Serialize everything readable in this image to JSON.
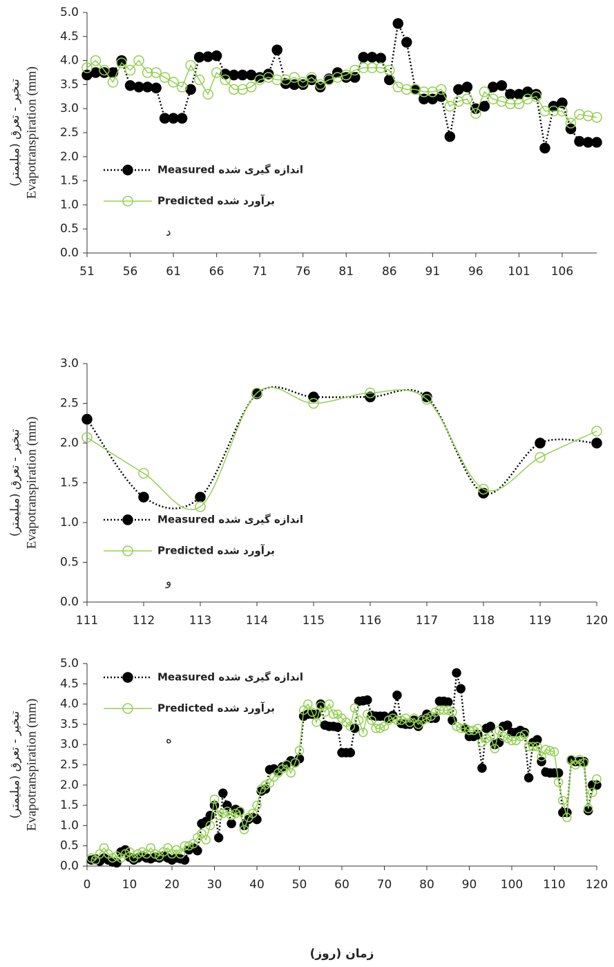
{
  "chart_data": [
    {
      "type": "line",
      "annotation": "د",
      "ylabel": "Evapotranspiration (mm)",
      "ylabel_fa": "تبخیر - تعرق (میلیمتر)",
      "x": [
        51,
        52,
        53,
        54,
        55,
        56,
        57,
        58,
        59,
        60,
        61,
        62,
        63,
        64,
        65,
        66,
        67,
        68,
        69,
        70,
        71,
        72,
        73,
        74,
        75,
        76,
        77,
        78,
        79,
        80,
        81,
        82,
        83,
        84,
        85,
        86,
        87,
        88,
        89,
        90,
        91,
        92,
        93,
        94,
        95,
        96,
        97,
        98,
        99,
        100,
        101,
        102,
        103,
        104,
        105,
        106,
        107,
        108,
        109,
        110
      ],
      "xlim": [
        51,
        110
      ],
      "xticks": [
        51,
        56,
        61,
        66,
        71,
        76,
        81,
        86,
        91,
        96,
        101,
        106
      ],
      "ylim": [
        0,
        5
      ],
      "yticks": [
        {
          "value": 0,
          "label": "0.0"
        },
        0.5,
        {
          "value": 1,
          "label": "1.0"
        },
        1.5,
        {
          "value": 2,
          "label": "2.0"
        },
        2.5,
        {
          "value": 3,
          "label": "3.0"
        },
        3.5,
        {
          "value": 4,
          "label": "4.0"
        },
        4.5,
        {
          "value": 5,
          "label": "5.0"
        }
      ],
      "legend": "center left",
      "smooth": false,
      "series": [
        {
          "name": "Measured اندازه گیری شده",
          "color": "#000000",
          "line": "dotted",
          "marker": "filled",
          "values": [
            3.7,
            3.75,
            3.75,
            3.75,
            4.0,
            3.48,
            3.45,
            3.45,
            3.43,
            2.8,
            2.8,
            2.8,
            3.4,
            4.07,
            4.08,
            4.1,
            3.72,
            3.7,
            3.7,
            3.7,
            3.65,
            3.72,
            4.22,
            3.52,
            3.5,
            3.5,
            3.6,
            3.45,
            3.62,
            3.75,
            3.65,
            3.65,
            4.07,
            4.07,
            4.05,
            3.6,
            4.77,
            4.38,
            3.4,
            3.2,
            3.2,
            3.25,
            2.42,
            3.4,
            3.45,
            3.0,
            3.05,
            3.45,
            3.48,
            3.3,
            3.3,
            3.35,
            3.3,
            2.18,
            3.05,
            3.12,
            2.58,
            2.32,
            2.3,
            2.3
          ]
        },
        {
          "name": "Predicted برآورد شده",
          "color": "#92d050",
          "line": "solid",
          "marker": "hollow",
          "values": [
            3.85,
            4.0,
            3.8,
            3.55,
            3.95,
            3.8,
            4.0,
            3.75,
            3.75,
            3.65,
            3.55,
            3.45,
            3.9,
            3.6,
            3.3,
            3.75,
            3.6,
            3.4,
            3.4,
            3.45,
            3.6,
            3.65,
            3.6,
            3.6,
            3.65,
            3.55,
            3.65,
            3.5,
            3.6,
            3.65,
            3.7,
            3.8,
            3.85,
            3.85,
            3.85,
            3.8,
            3.45,
            3.4,
            3.4,
            3.35,
            3.35,
            3.4,
            3.05,
            3.15,
            3.2,
            2.9,
            3.35,
            3.2,
            3.15,
            3.1,
            3.1,
            3.2,
            3.25,
            2.95,
            2.95,
            2.95,
            2.7,
            2.88,
            2.85,
            2.82
          ]
        }
      ]
    },
    {
      "type": "line",
      "annotation": "و",
      "ylabel": "Evapotranspiration (mm)",
      "ylabel_fa": "تبخیر - تعرق (میلیمتر)",
      "x": [
        111,
        112,
        113,
        114,
        115,
        116,
        117,
        118,
        119,
        120
      ],
      "xlim": [
        111,
        120
      ],
      "xticks": [
        111,
        112,
        113,
        114,
        115,
        116,
        117,
        118,
        119,
        120
      ],
      "ylim": [
        0,
        3
      ],
      "yticks": [
        {
          "value": 0,
          "label": "0.0"
        },
        0.5,
        {
          "value": 1,
          "label": "1.0"
        },
        1.5,
        {
          "value": 2,
          "label": "2.0"
        },
        2.5,
        {
          "value": 3,
          "label": "3.0"
        }
      ],
      "legend": "center left",
      "smooth": true,
      "series": [
        {
          "name": "Measured اندازه گیری شده",
          "color": "#000000",
          "line": "dotted",
          "marker": "filled",
          "values": [
            2.3,
            1.32,
            1.32,
            2.62,
            2.58,
            2.58,
            2.58,
            1.37,
            2.0,
            2.0
          ]
        },
        {
          "name": "Predicted برآورد شده",
          "color": "#92d050",
          "line": "solid",
          "marker": "hollow",
          "values": [
            2.07,
            1.62,
            1.2,
            2.63,
            2.5,
            2.63,
            2.55,
            1.42,
            1.82,
            2.15
          ]
        }
      ]
    },
    {
      "type": "line",
      "annotation": "ه",
      "ylabel": "Evapotranspiration (mm)",
      "ylabel_fa": "تبخیر - تعرق (میلیمتر)",
      "xlabel": "زمان (روز)",
      "x": [
        1,
        2,
        3,
        4,
        5,
        6,
        7,
        8,
        9,
        10,
        11,
        12,
        13,
        14,
        15,
        16,
        17,
        18,
        19,
        20,
        21,
        22,
        23,
        24,
        25,
        26,
        27,
        28,
        29,
        30,
        31,
        32,
        33,
        34,
        35,
        36,
        37,
        38,
        39,
        40,
        41,
        42,
        43,
        44,
        45,
        46,
        47,
        48,
        49,
        50,
        51,
        52,
        53,
        54,
        55,
        56,
        57,
        58,
        59,
        60,
        61,
        62,
        63,
        64,
        65,
        66,
        67,
        68,
        69,
        70,
        71,
        72,
        73,
        74,
        75,
        76,
        77,
        78,
        79,
        80,
        81,
        82,
        83,
        84,
        85,
        86,
        87,
        88,
        89,
        90,
        91,
        92,
        93,
        94,
        95,
        96,
        97,
        98,
        99,
        100,
        101,
        102,
        103,
        104,
        105,
        106,
        107,
        108,
        109,
        110,
        111,
        112,
        113,
        114,
        115,
        116,
        117,
        118,
        119,
        120
      ],
      "xlim": [
        0,
        120
      ],
      "xticks": [
        0,
        10,
        20,
        30,
        40,
        50,
        60,
        70,
        80,
        90,
        100,
        110,
        120
      ],
      "ylim": [
        0,
        5
      ],
      "yticks": [
        {
          "value": 0,
          "label": "0.0"
        },
        0.5,
        {
          "value": 1,
          "label": "1.0"
        },
        1.5,
        {
          "value": 2,
          "label": "2.0"
        },
        2.5,
        {
          "value": 3,
          "label": "3.0"
        },
        3.5,
        {
          "value": 4,
          "label": "4.0"
        },
        4.5,
        {
          "value": 5,
          "label": "5.0"
        }
      ],
      "legend": "upper left",
      "smooth": false,
      "series": [
        {
          "name": "Measured اندازه گیری شده",
          "color": "#000000",
          "line": "dotted",
          "marker": "filled",
          "values": [
            0.15,
            0.18,
            0.12,
            0.2,
            0.15,
            0.1,
            0.08,
            0.35,
            0.4,
            0.22,
            0.15,
            0.2,
            0.25,
            0.2,
            0.18,
            0.22,
            0.2,
            0.25,
            0.2,
            0.15,
            0.2,
            0.18,
            0.15,
            0.4,
            0.45,
            0.38,
            1.05,
            1.1,
            1.25,
            1.5,
            0.7,
            1.8,
            1.5,
            1.05,
            1.4,
            1.35,
            1.0,
            1.15,
            1.2,
            1.15,
            1.85,
            1.9,
            2.38,
            2.4,
            2.35,
            2.45,
            2.5,
            2.6,
            2.55,
            2.65,
            3.7,
            3.75,
            3.75,
            3.75,
            4.0,
            3.48,
            3.45,
            3.45,
            3.43,
            2.8,
            2.8,
            2.8,
            3.4,
            4.07,
            4.08,
            4.1,
            3.72,
            3.7,
            3.7,
            3.7,
            3.65,
            3.72,
            4.22,
            3.52,
            3.5,
            3.5,
            3.6,
            3.45,
            3.62,
            3.75,
            3.65,
            3.65,
            4.07,
            4.07,
            4.05,
            3.6,
            4.77,
            4.38,
            3.4,
            3.2,
            3.2,
            3.25,
            2.42,
            3.4,
            3.45,
            3.0,
            3.05,
            3.45,
            3.48,
            3.3,
            3.3,
            3.35,
            3.3,
            2.18,
            3.05,
            3.12,
            2.58,
            2.32,
            2.3,
            2.3,
            2.3,
            1.32,
            1.32,
            2.62,
            2.58,
            2.58,
            2.58,
            1.37,
            2.0,
            2.0
          ]
        },
        {
          "name": "Predicted برآورد شده",
          "color": "#92d050",
          "line": "solid",
          "marker": "hollow",
          "values": [
            0.2,
            0.15,
            0.3,
            0.45,
            0.3,
            0.2,
            0.25,
            0.2,
            0.3,
            0.35,
            0.2,
            0.3,
            0.35,
            0.3,
            0.45,
            0.3,
            0.25,
            0.35,
            0.45,
            0.3,
            0.4,
            0.3,
            0.5,
            0.5,
            0.55,
            0.7,
            0.8,
            0.65,
            1.0,
            1.65,
            1.25,
            1.3,
            1.35,
            1.25,
            1.3,
            1.35,
            0.9,
            1.2,
            1.3,
            1.5,
            1.9,
            2.0,
            2.05,
            2.2,
            2.3,
            2.4,
            2.5,
            2.3,
            2.55,
            2.85,
            3.85,
            4.0,
            3.8,
            3.55,
            3.95,
            3.8,
            4.0,
            3.75,
            3.75,
            3.65,
            3.55,
            3.45,
            3.9,
            3.6,
            3.3,
            3.75,
            3.6,
            3.4,
            3.4,
            3.45,
            3.6,
            3.65,
            3.6,
            3.6,
            3.65,
            3.55,
            3.65,
            3.5,
            3.6,
            3.65,
            3.7,
            3.8,
            3.85,
            3.85,
            3.85,
            3.8,
            3.45,
            3.4,
            3.4,
            3.35,
            3.35,
            3.4,
            3.05,
            3.15,
            3.2,
            2.9,
            3.35,
            3.2,
            3.15,
            3.1,
            3.1,
            3.2,
            3.25,
            2.95,
            2.95,
            2.95,
            2.7,
            2.88,
            2.85,
            2.82,
            2.07,
            1.62,
            1.2,
            2.63,
            2.5,
            2.63,
            2.55,
            1.42,
            1.82,
            2.15
          ]
        }
      ]
    }
  ]
}
